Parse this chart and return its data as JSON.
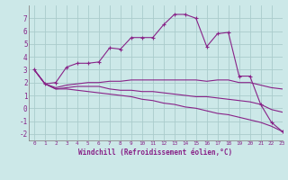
{
  "xlabel": "Windchill (Refroidissement éolien,°C)",
  "bg_color": "#cce8e8",
  "grid_color": "#aacccc",
  "line_color": "#882288",
  "x_values": [
    0,
    1,
    2,
    3,
    4,
    5,
    6,
    7,
    8,
    9,
    10,
    11,
    12,
    13,
    14,
    15,
    16,
    17,
    18,
    19,
    20,
    21,
    22,
    23
  ],
  "line1": [
    3.0,
    1.9,
    2.0,
    3.2,
    3.5,
    3.5,
    3.6,
    4.7,
    4.6,
    5.5,
    5.5,
    5.5,
    6.5,
    7.3,
    7.3,
    7.0,
    4.8,
    5.8,
    5.9,
    2.5,
    2.5,
    0.3,
    -1.1,
    -1.8
  ],
  "line2": [
    3.0,
    1.9,
    1.6,
    1.8,
    1.9,
    2.0,
    2.0,
    2.1,
    2.1,
    2.2,
    2.2,
    2.2,
    2.2,
    2.2,
    2.2,
    2.2,
    2.1,
    2.2,
    2.2,
    2.0,
    2.0,
    1.8,
    1.6,
    1.5
  ],
  "line3": [
    3.0,
    1.9,
    1.5,
    1.6,
    1.7,
    1.7,
    1.7,
    1.5,
    1.4,
    1.4,
    1.3,
    1.3,
    1.2,
    1.1,
    1.0,
    0.9,
    0.9,
    0.8,
    0.7,
    0.6,
    0.5,
    0.3,
    -0.1,
    -0.3
  ],
  "line4": [
    3.0,
    1.9,
    1.5,
    1.5,
    1.4,
    1.3,
    1.2,
    1.1,
    1.0,
    0.9,
    0.7,
    0.6,
    0.4,
    0.3,
    0.1,
    0.0,
    -0.2,
    -0.4,
    -0.5,
    -0.7,
    -0.9,
    -1.1,
    -1.4,
    -1.8
  ],
  "ylim": [
    -2.5,
    8.0
  ],
  "xlim": [
    -0.5,
    23
  ],
  "yticks": [
    -2,
    -1,
    0,
    1,
    2,
    3,
    4,
    5,
    6,
    7
  ],
  "xticks": [
    0,
    1,
    2,
    3,
    4,
    5,
    6,
    7,
    8,
    9,
    10,
    11,
    12,
    13,
    14,
    15,
    16,
    17,
    18,
    19,
    20,
    21,
    22,
    23
  ],
  "xlabel_fontsize": 5.5,
  "tick_fontsize": 5.5,
  "linewidth": 0.8,
  "marker_size": 3.0
}
